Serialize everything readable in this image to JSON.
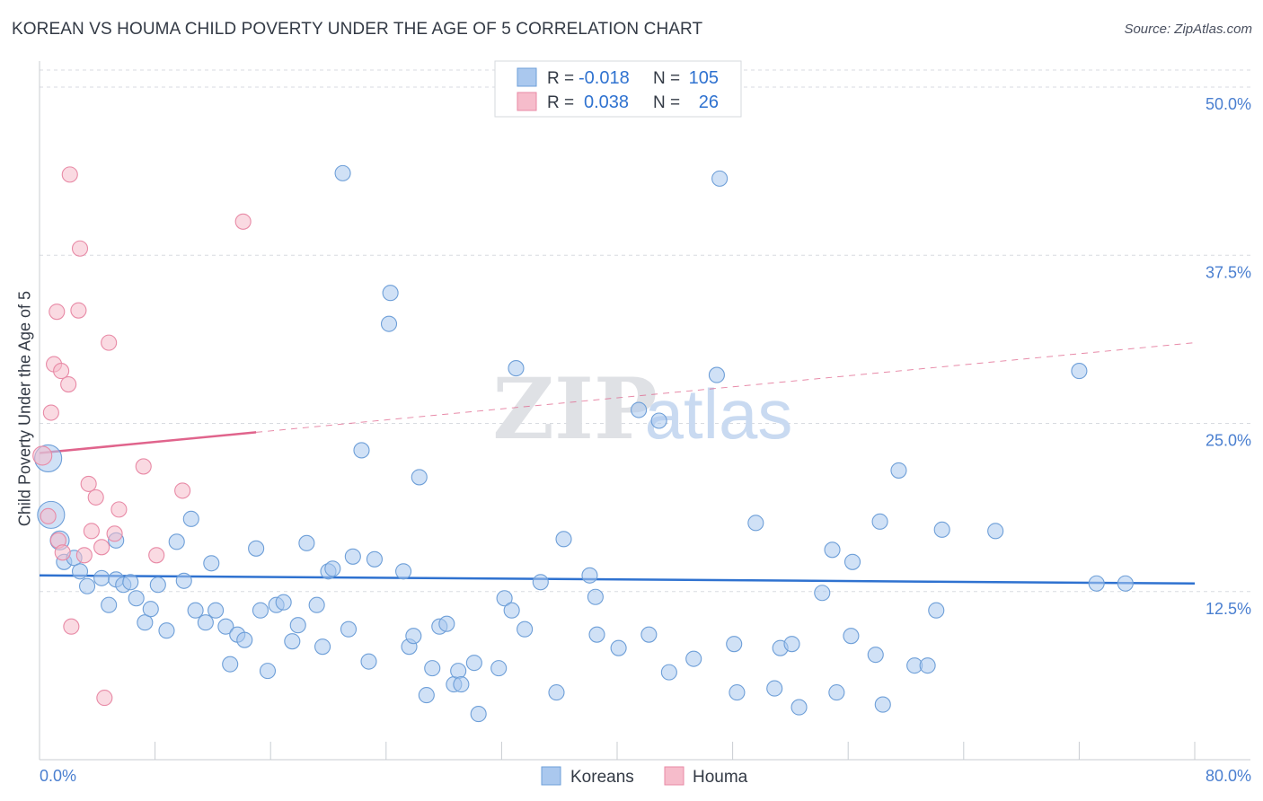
{
  "header": {
    "title": "KOREAN VS HOUMA CHILD POVERTY UNDER THE AGE OF 5 CORRELATION CHART",
    "source": "Source: ZipAtlas.com"
  },
  "colors": {
    "blue_fill": "#aac8ee",
    "blue_stroke": "#6e9fd8",
    "blue_line": "#2f72d0",
    "pink_fill": "#f6bccb",
    "pink_stroke": "#e88aa6",
    "pink_line": "#e0648c",
    "tick_text": "#4a7fd0",
    "grid": "#d8dbe0"
  },
  "legend": {
    "rows": [
      {
        "r_label": "R =",
        "r_value": "-0.018",
        "n_label": "N =",
        "n_value": "105"
      },
      {
        "r_label": "R =",
        "r_value": "0.038",
        "n_label": "N =",
        "n_value": "26"
      }
    ]
  },
  "chart_data": {
    "type": "scatter",
    "title": "KOREAN VS HOUMA CHILD POVERTY UNDER THE AGE OF 5 CORRELATION CHART",
    "xlabel": "",
    "ylabel": "Child Poverty Under the Age of 5",
    "xlim": [
      0,
      80
    ],
    "ylim": [
      0,
      50
    ],
    "x_tick_labels": [
      "0.0%",
      "80.0%"
    ],
    "y_ticks": [
      12.5,
      25.0,
      37.5,
      50.0
    ],
    "y_tick_labels": [
      "12.5%",
      "25.0%",
      "37.5%",
      "50.0%"
    ],
    "grid": true,
    "legend_position": "bottom",
    "watermark": "ZIPatlas",
    "series": [
      {
        "name": "Koreans",
        "r": -0.018,
        "n": 105,
        "trend": {
          "x": [
            0,
            80
          ],
          "y": [
            13.7,
            13.1
          ],
          "dashed_from": null
        },
        "points": [
          [
            0.6,
            22.4,
            2
          ],
          [
            0.8,
            18.2,
            2
          ],
          [
            1.4,
            16.3,
            1
          ],
          [
            1.7,
            14.7,
            0
          ],
          [
            2.4,
            15.0,
            0
          ],
          [
            2.8,
            14.0,
            0
          ],
          [
            3.3,
            12.9,
            0
          ],
          [
            4.3,
            13.5,
            0
          ],
          [
            4.8,
            11.5,
            0
          ],
          [
            5.3,
            16.3,
            0
          ],
          [
            5.3,
            13.4,
            0
          ],
          [
            5.8,
            13.0,
            0
          ],
          [
            6.3,
            13.2,
            0
          ],
          [
            6.7,
            12.0,
            0
          ],
          [
            7.3,
            10.2,
            0
          ],
          [
            7.7,
            11.2,
            0
          ],
          [
            8.2,
            13.0,
            0
          ],
          [
            8.8,
            9.6,
            0
          ],
          [
            9.5,
            16.2,
            0
          ],
          [
            10.0,
            13.3,
            0
          ],
          [
            10.5,
            17.9,
            0
          ],
          [
            10.8,
            11.1,
            0
          ],
          [
            11.5,
            10.2,
            0
          ],
          [
            11.9,
            14.6,
            0
          ],
          [
            12.2,
            11.1,
            0
          ],
          [
            12.9,
            9.9,
            0
          ],
          [
            13.2,
            7.1,
            0
          ],
          [
            13.7,
            9.3,
            0
          ],
          [
            14.2,
            8.9,
            0
          ],
          [
            15.0,
            15.7,
            0
          ],
          [
            15.3,
            11.1,
            0
          ],
          [
            15.8,
            6.6,
            0
          ],
          [
            16.4,
            11.5,
            0
          ],
          [
            16.9,
            11.7,
            0
          ],
          [
            17.5,
            8.8,
            0
          ],
          [
            17.9,
            10.0,
            0
          ],
          [
            18.5,
            16.1,
            0
          ],
          [
            19.2,
            11.5,
            0
          ],
          [
            19.6,
            8.4,
            0
          ],
          [
            20.0,
            14.0,
            0
          ],
          [
            20.3,
            14.2,
            0
          ],
          [
            21.0,
            43.6,
            0
          ],
          [
            21.4,
            9.7,
            0
          ],
          [
            21.7,
            15.1,
            0
          ],
          [
            22.3,
            23.0,
            0
          ],
          [
            22.8,
            7.3,
            0
          ],
          [
            23.2,
            14.9,
            0
          ],
          [
            24.2,
            32.4,
            0
          ],
          [
            24.3,
            34.7,
            0
          ],
          [
            25.2,
            14.0,
            0
          ],
          [
            25.6,
            8.4,
            0
          ],
          [
            25.9,
            9.2,
            0
          ],
          [
            26.3,
            21.0,
            0
          ],
          [
            26.8,
            4.8,
            0
          ],
          [
            27.2,
            6.8,
            0
          ],
          [
            27.7,
            9.9,
            0
          ],
          [
            28.2,
            10.1,
            0
          ],
          [
            28.7,
            5.6,
            0
          ],
          [
            29.0,
            6.6,
            0
          ],
          [
            29.2,
            5.6,
            0
          ],
          [
            30.1,
            7.2,
            0
          ],
          [
            30.4,
            3.4,
            0
          ],
          [
            31.8,
            6.8,
            0
          ],
          [
            32.2,
            12.0,
            0
          ],
          [
            32.7,
            11.1,
            0
          ],
          [
            33.0,
            29.1,
            0
          ],
          [
            33.6,
            9.7,
            0
          ],
          [
            34.7,
            13.2,
            0
          ],
          [
            35.8,
            5.0,
            0
          ],
          [
            36.3,
            16.4,
            0
          ],
          [
            38.1,
            13.7,
            0
          ],
          [
            38.5,
            12.1,
            0
          ],
          [
            38.6,
            9.3,
            0
          ],
          [
            40.1,
            8.3,
            0
          ],
          [
            41.5,
            26.0,
            0
          ],
          [
            42.2,
            9.3,
            0
          ],
          [
            42.9,
            25.2,
            0
          ],
          [
            43.6,
            6.5,
            0
          ],
          [
            45.3,
            7.5,
            0
          ],
          [
            46.9,
            28.6,
            0
          ],
          [
            47.1,
            43.2,
            0
          ],
          [
            48.1,
            8.6,
            0
          ],
          [
            48.3,
            5.0,
            0
          ],
          [
            49.6,
            17.6,
            0
          ],
          [
            50.9,
            5.3,
            0
          ],
          [
            51.3,
            8.3,
            0
          ],
          [
            52.1,
            8.6,
            0
          ],
          [
            52.6,
            3.9,
            0
          ],
          [
            54.2,
            12.4,
            0
          ],
          [
            54.9,
            15.6,
            0
          ],
          [
            55.2,
            5.0,
            0
          ],
          [
            56.2,
            9.2,
            0
          ],
          [
            56.3,
            14.7,
            0
          ],
          [
            57.9,
            7.8,
            0
          ],
          [
            58.2,
            17.7,
            0
          ],
          [
            58.4,
            4.1,
            0
          ],
          [
            59.5,
            21.5,
            0
          ],
          [
            60.6,
            7.0,
            0
          ],
          [
            61.5,
            7.0,
            0
          ],
          [
            62.1,
            11.1,
            0
          ],
          [
            62.5,
            17.1,
            0
          ],
          [
            66.2,
            17.0,
            0
          ],
          [
            72.0,
            28.9,
            0
          ],
          [
            73.2,
            13.1,
            0
          ],
          [
            75.2,
            13.1,
            0
          ]
        ]
      },
      {
        "name": "Houma",
        "r": 0.038,
        "n": 26,
        "trend": {
          "x": [
            0,
            80
          ],
          "y": [
            22.8,
            31.0
          ],
          "dashed_from": 15.0
        },
        "points": [
          [
            0.2,
            22.6,
            1
          ],
          [
            0.6,
            18.1,
            0
          ],
          [
            1.3,
            16.3,
            0
          ],
          [
            2.1,
            43.5,
            0
          ],
          [
            2.8,
            38.0,
            0
          ],
          [
            1.2,
            33.3,
            0
          ],
          [
            2.7,
            33.4,
            0
          ],
          [
            4.8,
            31.0,
            0
          ],
          [
            1.0,
            29.4,
            0
          ],
          [
            1.5,
            28.9,
            0
          ],
          [
            2.0,
            27.9,
            0
          ],
          [
            0.8,
            25.8,
            0
          ],
          [
            3.4,
            20.5,
            0
          ],
          [
            3.9,
            19.5,
            0
          ],
          [
            5.5,
            18.6,
            0
          ],
          [
            3.6,
            17.0,
            0
          ],
          [
            5.2,
            16.8,
            0
          ],
          [
            1.6,
            15.4,
            0
          ],
          [
            3.1,
            15.2,
            0
          ],
          [
            4.3,
            15.8,
            0
          ],
          [
            7.2,
            21.8,
            0
          ],
          [
            8.1,
            15.2,
            0
          ],
          [
            9.9,
            20.0,
            0
          ],
          [
            14.1,
            40.0,
            0
          ],
          [
            2.2,
            9.9,
            0
          ],
          [
            4.5,
            4.6,
            0
          ]
        ]
      }
    ]
  }
}
